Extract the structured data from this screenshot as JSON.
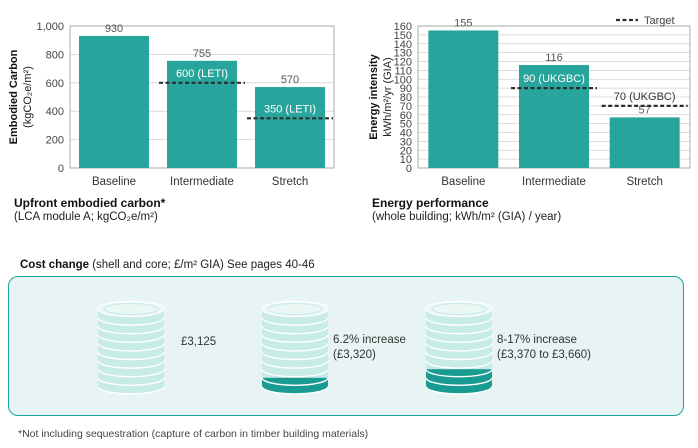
{
  "chart_data": [
    {
      "type": "bar",
      "categories": [
        "Baseline",
        "Intermediate",
        "Stretch"
      ],
      "values": [
        930,
        755,
        570
      ],
      "value_labels": [
        "930",
        "755",
        "570"
      ],
      "targets": [
        {
          "category": "Intermediate",
          "value": 600,
          "label": "600 (LETI)"
        },
        {
          "category": "Stretch",
          "value": 350,
          "label": "350 (LETI)"
        }
      ],
      "ylabel_line1": "Embodied Carbon",
      "ylabel_line2": "(kgCO₂e/m²)",
      "ylim": [
        0,
        1000
      ],
      "yticks": [
        0,
        200,
        400,
        600,
        800,
        1000
      ],
      "ytick_labels": [
        "0",
        "200",
        "400",
        "600",
        "800",
        "1,000"
      ],
      "grid": true,
      "caption_title": "Upfront embodied carbon*",
      "caption_sub": "(LCA module A; kgCO₂e/m²)"
    },
    {
      "type": "bar",
      "categories": [
        "Baseline",
        "Intermediate",
        "Stretch"
      ],
      "values": [
        155,
        116,
        57
      ],
      "value_labels": [
        "155",
        "116",
        "57"
      ],
      "targets": [
        {
          "category": "Intermediate",
          "value": 90,
          "label": "90 (UKGBC)"
        },
        {
          "category": "Stretch",
          "value": 70,
          "label": "70 (UKGBC)"
        }
      ],
      "legend": "Target",
      "legend_position": "top-right",
      "ylabel_line1": "Energy intensity",
      "ylabel_line2": "kWh/m²/yr (GIA)",
      "ylim": [
        0,
        160
      ],
      "yticks": [
        0,
        10,
        20,
        30,
        40,
        50,
        60,
        70,
        80,
        90,
        100,
        110,
        120,
        130,
        140,
        150,
        160
      ],
      "ytick_labels": [
        "0",
        "10",
        "20",
        "30",
        "40",
        "50",
        "60",
        "70",
        "80",
        "90",
        "100",
        "110",
        "120",
        "130",
        "140",
        "150",
        "160"
      ],
      "grid": true,
      "caption_title": "Energy performance",
      "caption_sub": "(whole building; kWh/m² (GIA) / year)"
    }
  ],
  "cost": {
    "title": "Cost change",
    "subtitle": " (shell and core; £/m² GIA) See pages 40-46",
    "items": [
      {
        "line1": "£3,125",
        "line2": "",
        "fill": 0
      },
      {
        "line1": "6.2% increase",
        "line2": "(£3,320)",
        "fill": 0.062
      },
      {
        "line1": "8-17% increase",
        "line2": "(£3,370 to £3,660)",
        "fill": 0.17
      }
    ]
  },
  "footnote": "*Not including sequestration (capture of carbon in timber building materials)",
  "colors": {
    "bar": "#27a59c",
    "stack_light": "#c7ebe6",
    "stack_dark": "#1a9b91",
    "grid": "#d2d2d2",
    "target": "#2e2e2e",
    "panel_bg": "#e8f4f3",
    "panel_border": "#1aa69c"
  }
}
